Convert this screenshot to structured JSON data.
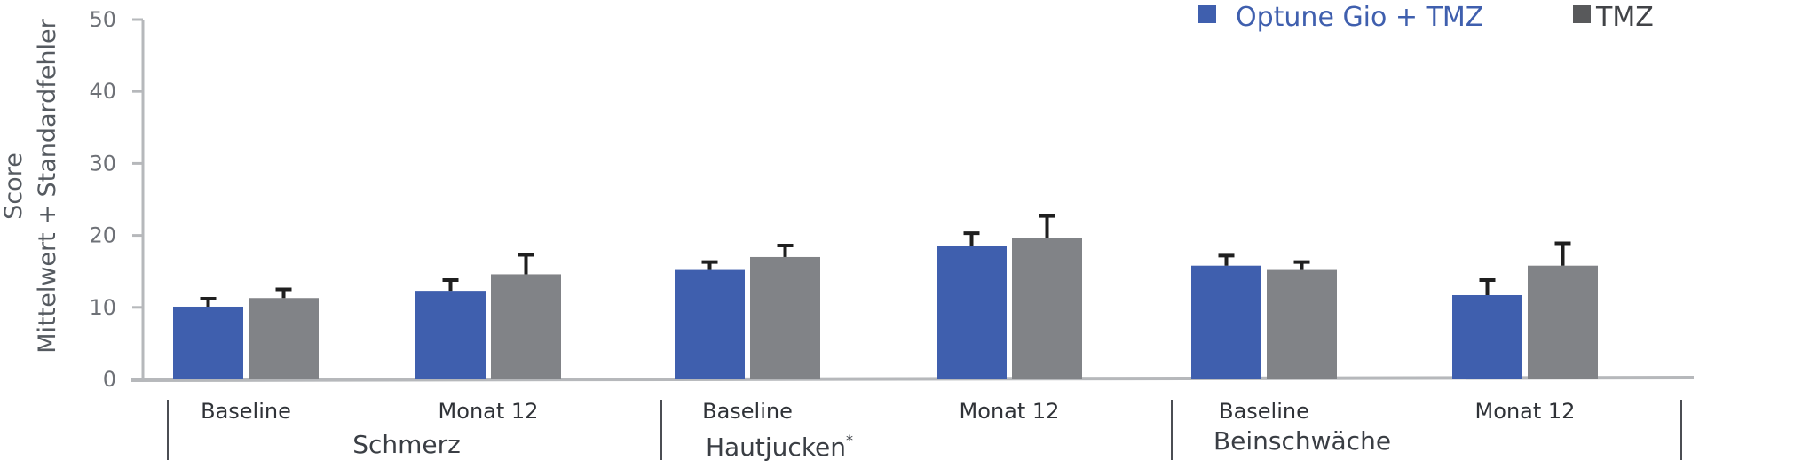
{
  "chart_data": {
    "type": "bar",
    "ylabel_lines": [
      "Score",
      "Mittelwert + Standardfehler"
    ],
    "ylim": [
      0,
      50
    ],
    "yticks": [
      0,
      10,
      20,
      30,
      40,
      50
    ],
    "legend_position": "top-right",
    "grid": false,
    "groups": [
      {
        "label": "Schmerz",
        "footnote": "",
        "categories": [
          "Baseline",
          "Monat 12"
        ]
      },
      {
        "label": "Hautjucken",
        "footnote": "*",
        "categories": [
          "Baseline",
          "Monat 12"
        ]
      },
      {
        "label": "Beinschwäche",
        "footnote": "",
        "categories": [
          "Baseline",
          "Monat 12"
        ]
      }
    ],
    "series": [
      {
        "name": "Optune Gio + TMZ",
        "color": "#3f5fae",
        "values": [
          10.1,
          12.3,
          15.2,
          18.5,
          15.8,
          11.7
        ],
        "errors": [
          1.1,
          1.5,
          1.1,
          1.8,
          1.4,
          2.1
        ]
      },
      {
        "name": "TMZ",
        "color": "#818387",
        "values": [
          11.3,
          14.6,
          17.0,
          19.7,
          15.2,
          15.8
        ],
        "errors": [
          1.2,
          2.7,
          1.6,
          3.0,
          1.1,
          3.1
        ]
      }
    ]
  }
}
